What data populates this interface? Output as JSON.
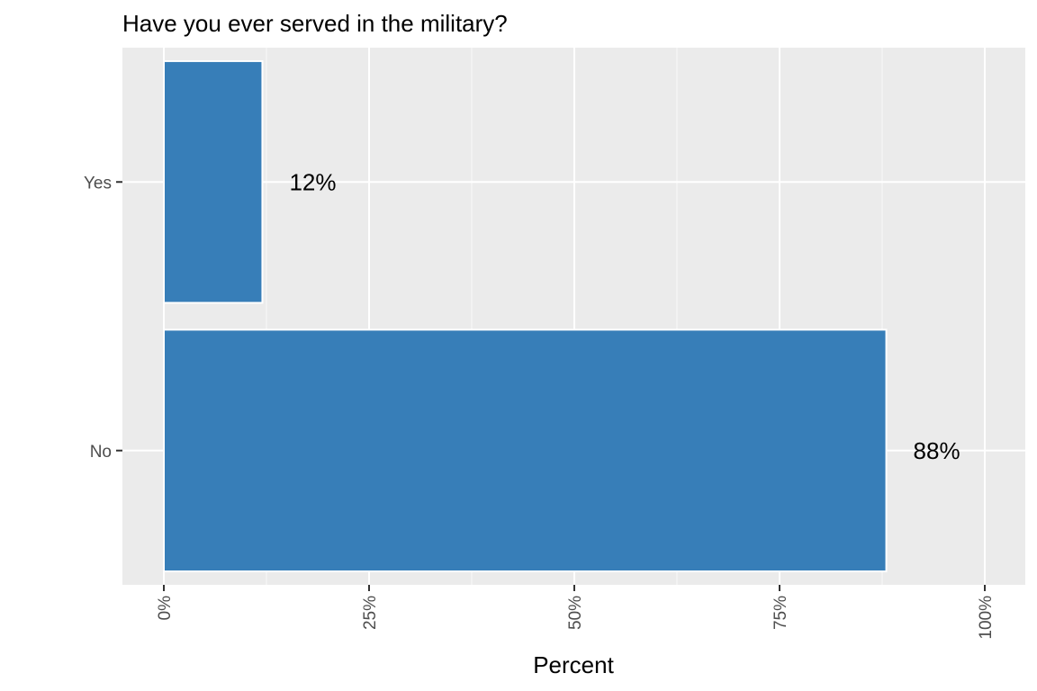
{
  "chart_data": {
    "type": "bar",
    "orientation": "horizontal",
    "title": "Have you ever served in the military?",
    "xlabel": "Percent",
    "ylabel": "",
    "categories": [
      "Yes",
      "No"
    ],
    "values": [
      12,
      88
    ],
    "data_labels": [
      "12%",
      "88%"
    ],
    "xlim": [
      0,
      100
    ],
    "x_ticks": [
      0,
      25,
      50,
      75,
      100
    ],
    "x_tick_labels": [
      "0%",
      "25%",
      "50%",
      "75%",
      "100%"
    ],
    "x_tick_label_rotation": "vertical",
    "grid": true,
    "legend": "none",
    "colors": {
      "bar": "#377eb8",
      "panel": "#ebebeb",
      "grid": "#ffffff",
      "tick_text": "#4d4d4d"
    }
  }
}
